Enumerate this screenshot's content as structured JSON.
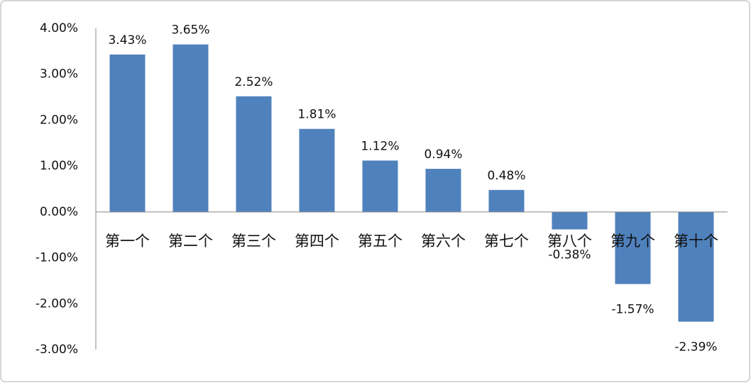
{
  "chart_data": {
    "type": "bar",
    "categories": [
      "第一个",
      "第二个",
      "第三个",
      "第四个",
      "第五个",
      "第六个",
      "第七个",
      "第八个",
      "第九个",
      "第十个"
    ],
    "values": [
      3.43,
      3.65,
      2.52,
      1.81,
      1.12,
      0.94,
      0.48,
      -0.38,
      -1.57,
      -2.39
    ],
    "value_labels": [
      "3.43%",
      "3.65%",
      "2.52%",
      "1.81%",
      "1.12%",
      "0.94%",
      "0.48%",
      "-0.38%",
      "-1.57%",
      "-2.39%"
    ],
    "color": "#4f81bd",
    "ylim": [
      -3,
      4
    ],
    "yticks": [
      {
        "value": -3,
        "label": "-3.00%"
      },
      {
        "value": -2,
        "label": "-2.00%"
      },
      {
        "value": -1,
        "label": "-1.00%"
      },
      {
        "value": 0,
        "label": "0.00%"
      },
      {
        "value": 1,
        "label": "1.00%"
      },
      {
        "value": 2,
        "label": "2.00%"
      },
      {
        "value": 3,
        "label": "3.00%"
      },
      {
        "value": 4,
        "label": "4.00%"
      }
    ],
    "grid": false
  }
}
